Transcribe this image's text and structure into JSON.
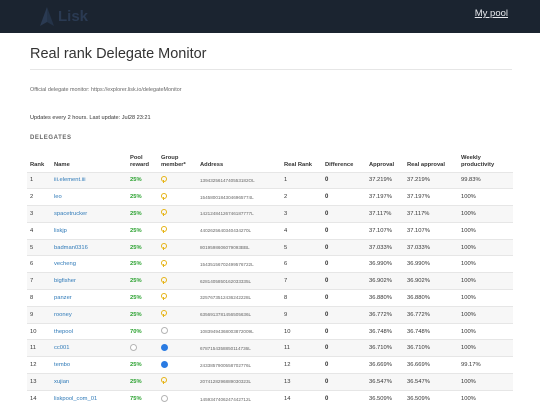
{
  "header": {
    "logo_text": "Lisk",
    "my_pool_label": "My pool"
  },
  "page": {
    "title": "Real rank Delegate Monitor",
    "official_text": "Official delegate monitor: https://explorer.lisk.io/delegateMonitor",
    "updates_text": "Updates every 2 hours. Last update: Jul28 23:21",
    "section_label": "DELEGATES"
  },
  "colors": {
    "topbar": "#1b2430",
    "link": "#2f7ab8",
    "reward_green": "#27a02c",
    "key_yellow": "#e6b417",
    "member_blue": "#2a7be2"
  },
  "table": {
    "headers": [
      "Rank",
      "Name",
      "Pool reward",
      "Group member*",
      "Address",
      "Real Rank",
      "Difference",
      "Approval",
      "Real approval",
      "Weekly productivity"
    ],
    "rows": [
      {
        "rank": "1",
        "name": "iii.element.iii",
        "reward": "25%",
        "member": "key-icon",
        "address": "1394325614740553182OL",
        "real_rank": "1",
        "diff": "0",
        "approval": "37.219%",
        "real_approval": "37.219%",
        "productivity": "99.83%"
      },
      {
        "rank": "2",
        "name": "leo",
        "reward": "25%",
        "member": "key-icon",
        "address": "15458001843046965774L",
        "real_rank": "2",
        "diff": "0",
        "approval": "37.197%",
        "real_approval": "37.197%",
        "productivity": "100%"
      },
      {
        "rank": "3",
        "name": "spacetrucker",
        "reward": "25%",
        "member": "key-icon",
        "address": "14212484126746187777L",
        "real_rank": "3",
        "diff": "0",
        "approval": "37.117%",
        "real_approval": "37.117%",
        "productivity": "100%"
      },
      {
        "rank": "4",
        "name": "liskjp",
        "reward": "25%",
        "member": "key-icon",
        "address": "4402625640340434270L",
        "real_rank": "4",
        "diff": "0",
        "approval": "37.107%",
        "real_approval": "37.107%",
        "productivity": "100%"
      },
      {
        "rank": "5",
        "name": "badman0316",
        "reward": "25%",
        "member": "key-icon",
        "address": "8019598606079093BBL",
        "real_rank": "5",
        "diff": "0",
        "approval": "37.033%",
        "real_approval": "37.033%",
        "productivity": "100%"
      },
      {
        "rank": "6",
        "name": "vecheng",
        "reward": "25%",
        "member": "key-icon",
        "address": "15435156702499576722L",
        "real_rank": "6",
        "diff": "0",
        "approval": "36.990%",
        "real_approval": "36.990%",
        "productivity": "100%"
      },
      {
        "rank": "7",
        "name": "bigfisher",
        "reward": "25%",
        "member": "key-icon",
        "address": "6281405850162033335L",
        "real_rank": "7",
        "diff": "0",
        "approval": "36.902%",
        "real_approval": "36.902%",
        "productivity": "100%"
      },
      {
        "rank": "8",
        "name": "panzer",
        "reward": "25%",
        "member": "key-icon",
        "address": "3257673512436242228L",
        "real_rank": "8",
        "diff": "0",
        "approval": "36.880%",
        "real_approval": "36.880%",
        "productivity": "100%"
      },
      {
        "rank": "9",
        "name": "rooney",
        "reward": "25%",
        "member": "key-icon",
        "address": "6356913781456505636L",
        "real_rank": "9",
        "diff": "0",
        "approval": "36.772%",
        "real_approval": "36.772%",
        "productivity": "100%"
      },
      {
        "rank": "10",
        "name": "thepool",
        "reward": "70%",
        "member": "circle-empty",
        "address": "10839494368003872009L",
        "real_rank": "10",
        "diff": "0",
        "approval": "36.748%",
        "real_approval": "36.748%",
        "productivity": "100%"
      },
      {
        "rank": "11",
        "name": "cc001",
        "reward": "",
        "member": "circle-blue",
        "reward_icon": "circle-empty",
        "address": "6787154358850114736L",
        "real_rank": "11",
        "diff": "0",
        "approval": "36.710%",
        "real_approval": "36.710%",
        "productivity": "100%"
      },
      {
        "rank": "12",
        "name": "tembo",
        "reward": "25%",
        "member": "circle-blue",
        "address": "2433857900558702776L",
        "real_rank": "12",
        "diff": "0",
        "approval": "36.669%",
        "real_approval": "36.669%",
        "productivity": "99.17%"
      },
      {
        "rank": "13",
        "name": "xujian",
        "reward": "25%",
        "member": "key-icon",
        "address": "2074128296889030323L",
        "real_rank": "13",
        "diff": "0",
        "approval": "36.547%",
        "real_approval": "36.547%",
        "productivity": "100%"
      },
      {
        "rank": "14",
        "name": "liskpool_com_01",
        "reward": "75%",
        "member": "circle-empty",
        "address": "1459347406247442712L",
        "real_rank": "14",
        "diff": "0",
        "approval": "36.509%",
        "real_approval": "36.509%",
        "productivity": "100%"
      }
    ]
  }
}
